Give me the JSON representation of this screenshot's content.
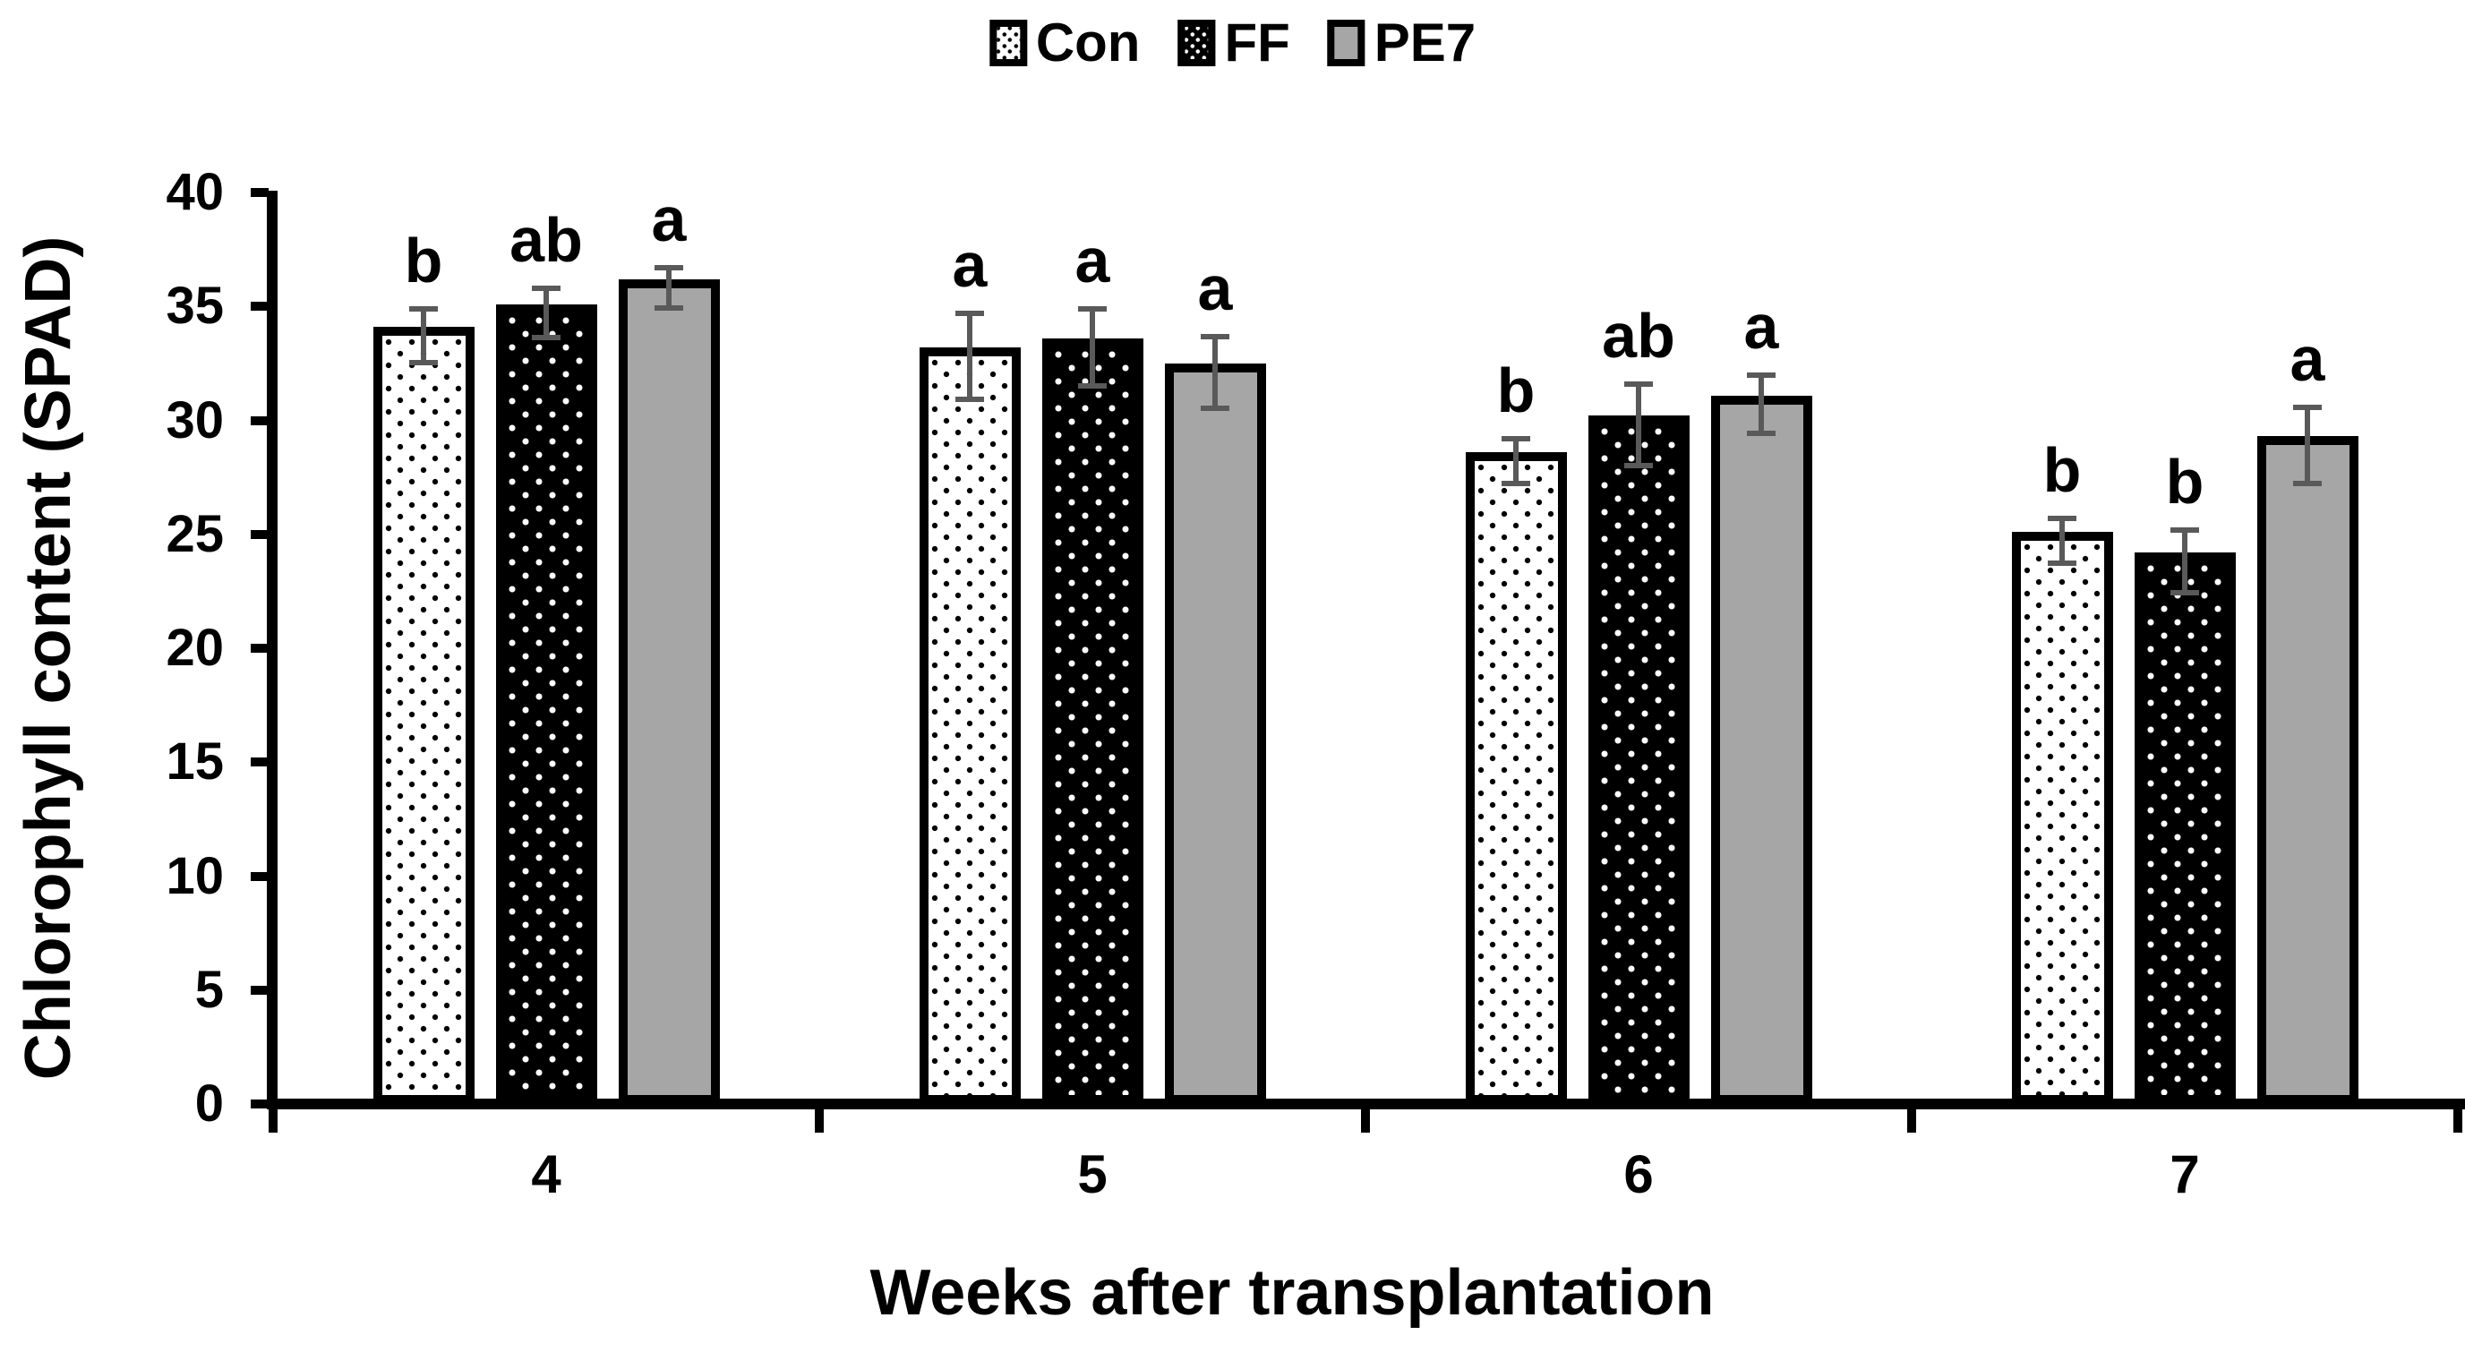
{
  "chart_data": {
    "type": "bar",
    "title": "",
    "xlabel": "Weeks after transplantation",
    "ylabel": "Chlorophyll content (SPAD)",
    "categories": [
      "4",
      "5",
      "6",
      "7"
    ],
    "series": [
      {
        "name": "Con",
        "fill_style": "white-with-black-dots",
        "values": [
          34.1,
          33.2,
          28.6,
          25.1
        ],
        "errors": [
          1.3,
          2.0,
          1.1,
          1.1
        ],
        "sig_letters": [
          "b",
          "a",
          "b",
          "b"
        ]
      },
      {
        "name": "FF",
        "fill_style": "black-with-white-dots",
        "values": [
          35.1,
          33.6,
          30.2,
          24.2
        ],
        "errors": [
          1.2,
          1.8,
          1.9,
          1.5
        ],
        "sig_letters": [
          "ab",
          "a",
          "ab",
          "b"
        ]
      },
      {
        "name": "PE7",
        "fill_style": "solid-gray",
        "fill_color": "#a6a6a6",
        "values": [
          36.2,
          32.5,
          31.1,
          29.3
        ],
        "errors": [
          1.0,
          1.7,
          1.4,
          1.8
        ],
        "sig_letters": [
          "a",
          "a",
          "a",
          "a"
        ]
      }
    ],
    "ylim": [
      0,
      40
    ],
    "yticks": [
      0,
      5,
      10,
      15,
      20,
      25,
      30,
      35,
      40
    ],
    "legend_position": "top-center",
    "error_bar_color": "#595959",
    "grid": false,
    "background": "#ffffff"
  }
}
